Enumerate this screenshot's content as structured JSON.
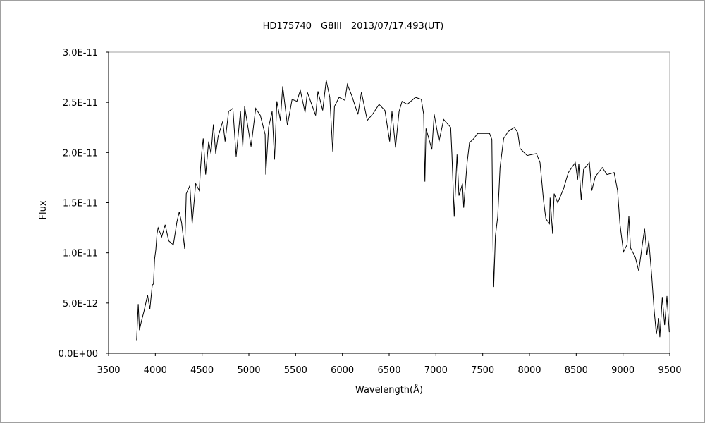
{
  "chart_data": {
    "type": "line",
    "title": "HD175740　G8III　2013/07/17.493(UT)",
    "xlabel": "Wavelength(Å)",
    "ylabel": "Flux",
    "xlim": [
      3500,
      9500
    ],
    "ylim": [
      0,
      3e-11
    ],
    "grid": false,
    "legend": "none",
    "line_color": "#000000",
    "x_ticks": [
      "3500",
      "4000",
      "4500",
      "5000",
      "5500",
      "6000",
      "6500",
      "7000",
      "7500",
      "8000",
      "8500",
      "9000",
      "9500"
    ],
    "y_ticks": [
      "0.0E+00",
      "5.0E-12",
      "1.0E-11",
      "1.5E-11",
      "2.0E-11",
      "2.5E-11",
      "3.0E-11"
    ],
    "series": [
      {
        "x": [
          3800,
          3817,
          3830,
          3854,
          3879,
          3917,
          3942,
          3967,
          3980,
          3992,
          4005,
          4018,
          4030,
          4068,
          4105,
          4143,
          4193,
          4231,
          4256,
          4281,
          4314,
          4331,
          4369,
          4394,
          4432,
          4470,
          4482,
          4495,
          4512,
          4538,
          4570,
          4595,
          4621,
          4646,
          4671,
          4721,
          4746,
          4784,
          4829,
          4864,
          4910,
          4935,
          4955,
          5023,
          5073,
          5123,
          5174,
          5181,
          5211,
          5249,
          5274,
          5299,
          5337,
          5362,
          5412,
          5462,
          5513,
          5550,
          5601,
          5626,
          5714,
          5739,
          5789,
          5827,
          5865,
          5897,
          5915,
          5965,
          6027,
          6053,
          6103,
          6166,
          6204,
          6266,
          6329,
          6392,
          6455,
          6505,
          6530,
          6568,
          6606,
          6638,
          6694,
          6781,
          6844,
          6869,
          6882,
          6894,
          6957,
          6982,
          7033,
          7083,
          7158,
          7171,
          7196,
          7226,
          7246,
          7284,
          7297,
          7334,
          7359,
          7397,
          7447,
          7573,
          7598,
          7610,
          7618,
          7636,
          7661,
          7686,
          7724,
          7774,
          7837,
          7875,
          7900,
          7975,
          8075,
          8113,
          8151,
          8176,
          8214,
          8221,
          8247,
          8264,
          8302,
          8365,
          8415,
          8490,
          8515,
          8528,
          8553,
          8578,
          8641,
          8666,
          8704,
          8779,
          8829,
          8905,
          8942,
          8967,
          9005,
          9043,
          9063,
          9080,
          9131,
          9168,
          9206,
          9231,
          9256,
          9276,
          9307,
          9332,
          9357,
          9382,
          9394,
          9420,
          9445,
          9470,
          9495
        ],
        "y": [
          1.3e-12,
          4.9e-12,
          2.3e-12,
          3.3e-12,
          4.2e-12,
          5.8e-12,
          4.4e-12,
          6.8e-12,
          6.9e-12,
          9.4e-12,
          1.03e-11,
          1.19e-11,
          1.25e-11,
          1.16e-11,
          1.28e-11,
          1.12e-11,
          1.08e-11,
          1.31e-11,
          1.41e-11,
          1.3e-11,
          1.04e-11,
          1.59e-11,
          1.67e-11,
          1.29e-11,
          1.69e-11,
          1.62e-11,
          1.83e-11,
          1.99e-11,
          2.14e-11,
          1.78e-11,
          2.11e-11,
          1.99e-11,
          2.28e-11,
          1.99e-11,
          2.16e-11,
          2.31e-11,
          2.11e-11,
          2.41e-11,
          2.44e-11,
          1.96e-11,
          2.41e-11,
          2.06e-11,
          2.46e-11,
          2.06e-11,
          2.44e-11,
          2.37e-11,
          2.18e-11,
          1.78e-11,
          2.25e-11,
          2.41e-11,
          1.93e-11,
          2.51e-11,
          2.32e-11,
          2.66e-11,
          2.27e-11,
          2.53e-11,
          2.51e-11,
          2.62e-11,
          2.4e-11,
          2.6e-11,
          2.37e-11,
          2.61e-11,
          2.42e-11,
          2.72e-11,
          2.55e-11,
          2.01e-11,
          2.46e-11,
          2.55e-11,
          2.52e-11,
          2.68e-11,
          2.56e-11,
          2.38e-11,
          2.6e-11,
          2.32e-11,
          2.39e-11,
          2.48e-11,
          2.42e-11,
          2.11e-11,
          2.41e-11,
          2.05e-11,
          2.41e-11,
          2.51e-11,
          2.48e-11,
          2.55e-11,
          2.53e-11,
          2.38e-11,
          1.71e-11,
          2.24e-11,
          2.03e-11,
          2.38e-11,
          2.11e-11,
          2.33e-11,
          2.25e-11,
          1.99e-11,
          1.36e-11,
          1.98e-11,
          1.57e-11,
          1.69e-11,
          1.45e-11,
          1.9e-11,
          2.1e-11,
          2.13e-11,
          2.19e-11,
          2.19e-11,
          2.13e-11,
          1.08e-11,
          6.6e-12,
          1.17e-11,
          1.36e-11,
          1.85e-11,
          2.14e-11,
          2.21e-11,
          2.25e-11,
          2.2e-11,
          2.04e-11,
          1.97e-11,
          1.99e-11,
          1.9e-11,
          1.52e-11,
          1.34e-11,
          1.29e-11,
          1.55e-11,
          1.19e-11,
          1.59e-11,
          1.5e-11,
          1.64e-11,
          1.8e-11,
          1.9e-11,
          1.73e-11,
          1.89e-11,
          1.53e-11,
          1.83e-11,
          1.9e-11,
          1.62e-11,
          1.76e-11,
          1.85e-11,
          1.78e-11,
          1.8e-11,
          1.62e-11,
          1.29e-11,
          1.01e-11,
          1.08e-11,
          1.37e-11,
          1.05e-11,
          9.6e-12,
          8.2e-12,
          1.08e-11,
          1.24e-11,
          9.8e-12,
          1.12e-11,
          7.7e-12,
          4.4e-12,
          1.9e-12,
          3.5e-12,
          1.6e-12,
          5.6e-12,
          2.8e-12,
          5.7e-12,
          2.1e-12
        ]
      }
    ]
  }
}
